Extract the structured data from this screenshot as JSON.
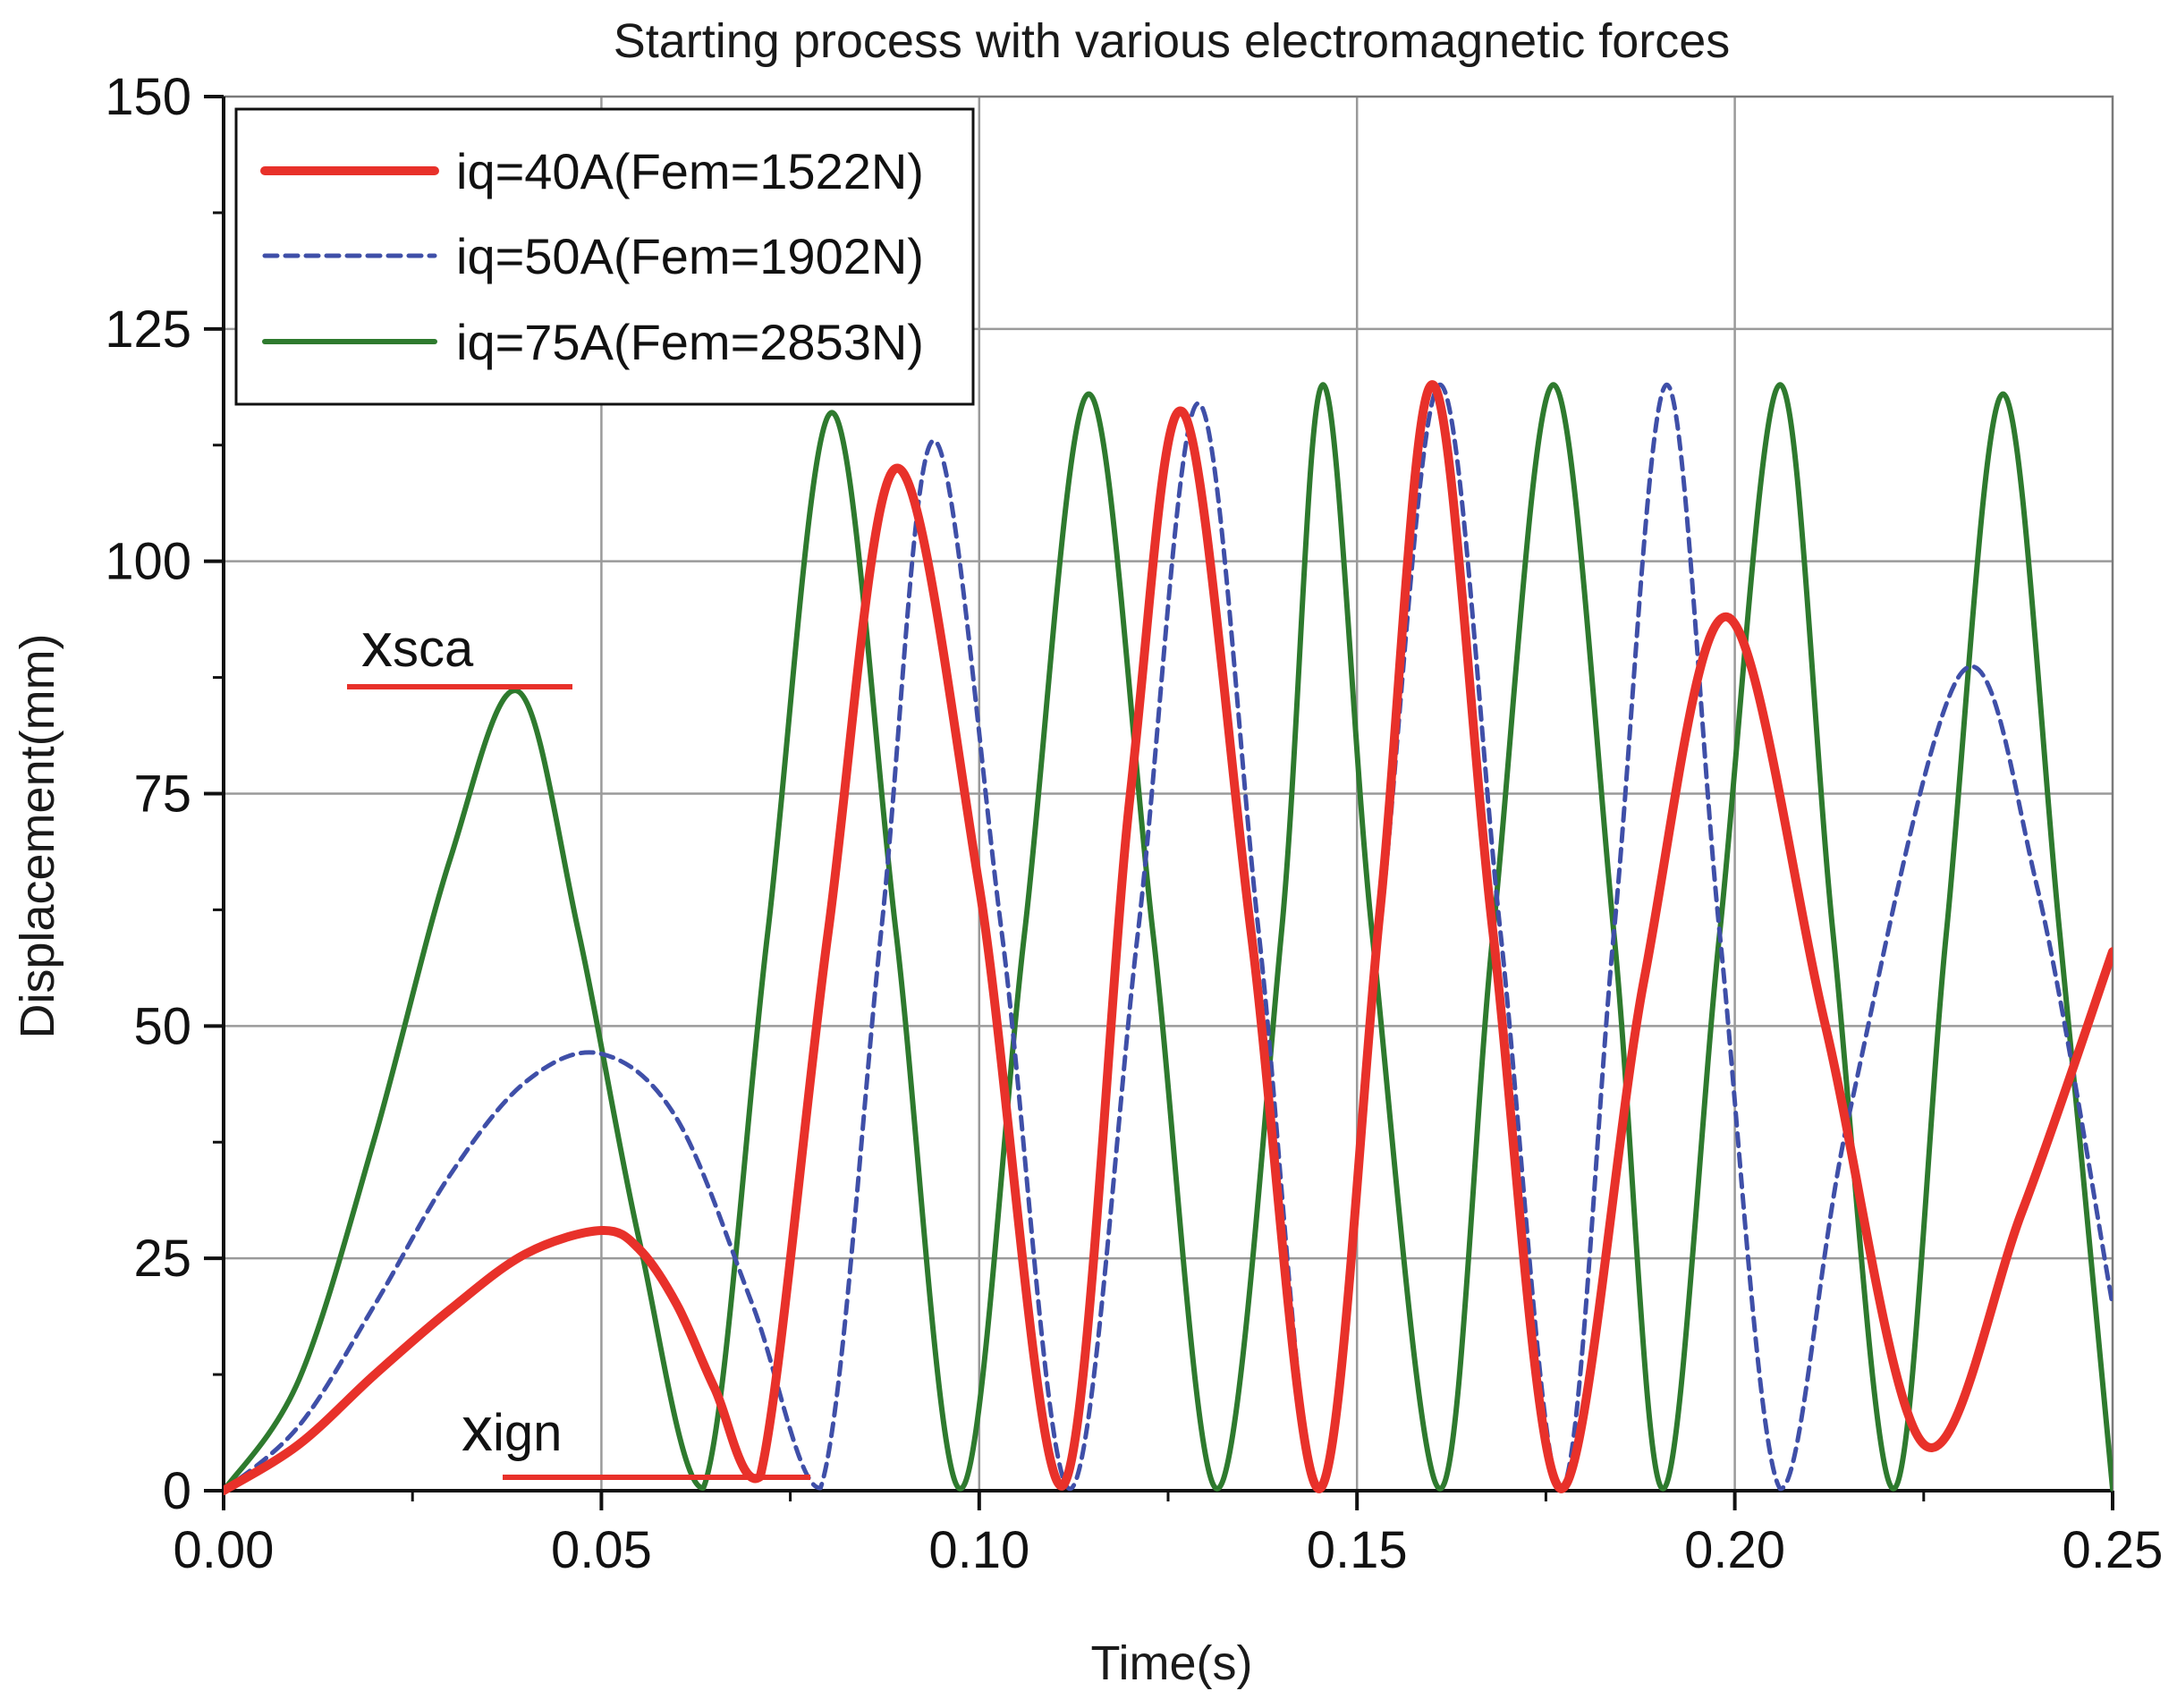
{
  "chart_data": {
    "type": "line",
    "title": "Starting process with various electromagnetic forces",
    "xlabel": "Time(s)",
    "ylabel": "Displacement(mm)",
    "xlim": [
      0,
      0.25
    ],
    "ylim": [
      0,
      150
    ],
    "xticks": [
      0.0,
      0.05,
      0.1,
      0.15,
      0.2,
      0.25
    ],
    "xtick_labels": [
      "0.00",
      "0.05",
      "0.10",
      "0.15",
      "0.20",
      "0.25"
    ],
    "yticks": [
      0,
      25,
      50,
      75,
      100,
      125,
      150
    ],
    "ytick_labels": [
      "0",
      "25",
      "50",
      "75",
      "100",
      "125",
      "150"
    ],
    "grid": true,
    "legend_position": "top-left",
    "series": [
      {
        "name": "iq=40A(Fem=1522N)",
        "color": "#e8312a",
        "style": "solid-thick",
        "x": [
          0,
          0.01,
          0.02,
          0.03,
          0.04,
          0.05,
          0.055,
          0.06,
          0.065,
          0.071,
          0.08,
          0.089,
          0.1,
          0.111,
          0.12,
          0.127,
          0.136,
          0.145,
          0.153,
          0.16,
          0.168,
          0.177,
          0.188,
          0.199,
          0.212,
          0.225,
          0.238,
          0.25
        ],
        "y": [
          0,
          5,
          12.5,
          19.5,
          25.5,
          28,
          26,
          20,
          11,
          1.5,
          60,
          110,
          65,
          0.5,
          75,
          116,
          60,
          0.2,
          62,
          119,
          60,
          0.2,
          55,
          94,
          50,
          5,
          30,
          58
        ]
      },
      {
        "name": "iq=50A(Fem=1902N)",
        "color": "#3f4fa8",
        "style": "dashed",
        "x": [
          0,
          0.01,
          0.02,
          0.03,
          0.04,
          0.05,
          0.06,
          0.07,
          0.079,
          0.087,
          0.094,
          0.103,
          0.112,
          0.121,
          0.129,
          0.137,
          0.145,
          0.153,
          0.161,
          0.169,
          0.177,
          0.184,
          0.191,
          0.198,
          0.206,
          0.215,
          0.23,
          0.24,
          0.25
        ],
        "y": [
          0,
          7,
          20,
          34,
          44,
          47,
          40,
          20,
          0.3,
          60,
          113,
          60,
          0.2,
          60,
          117,
          60,
          0.2,
          60,
          119,
          60,
          0.2,
          60,
          119,
          60,
          0.2,
          40,
          88,
          65,
          20
        ]
      },
      {
        "name": "iq=75A(Fem=2853N)",
        "color": "#2e7a2e",
        "style": "solid",
        "x": [
          0,
          0.01,
          0.02,
          0.03,
          0.039,
          0.047,
          0.055,
          0.0635,
          0.072,
          0.0805,
          0.089,
          0.0975,
          0.106,
          0.1145,
          0.123,
          0.1315,
          0.14,
          0.1455,
          0.152,
          0.161,
          0.168,
          0.176,
          0.184,
          0.1905,
          0.198,
          0.206,
          0.213,
          0.221,
          0.228,
          0.2355,
          0.243,
          0.25
        ],
        "y": [
          0,
          12,
          38,
          68,
          86,
          60,
          27,
          0.3,
          60,
          116,
          60,
          0.2,
          60,
          118,
          60,
          0.2,
          60,
          119,
          60,
          0.2,
          60,
          119,
          60,
          0.2,
          60,
          119,
          60,
          0.2,
          60,
          118,
          60,
          0.2
        ]
      }
    ],
    "annotations": [
      {
        "label": "x",
        "sub": "sca",
        "color": "#e8312a"
      },
      {
        "label": "x",
        "sub": "ign",
        "color": "#e8312a"
      }
    ]
  }
}
